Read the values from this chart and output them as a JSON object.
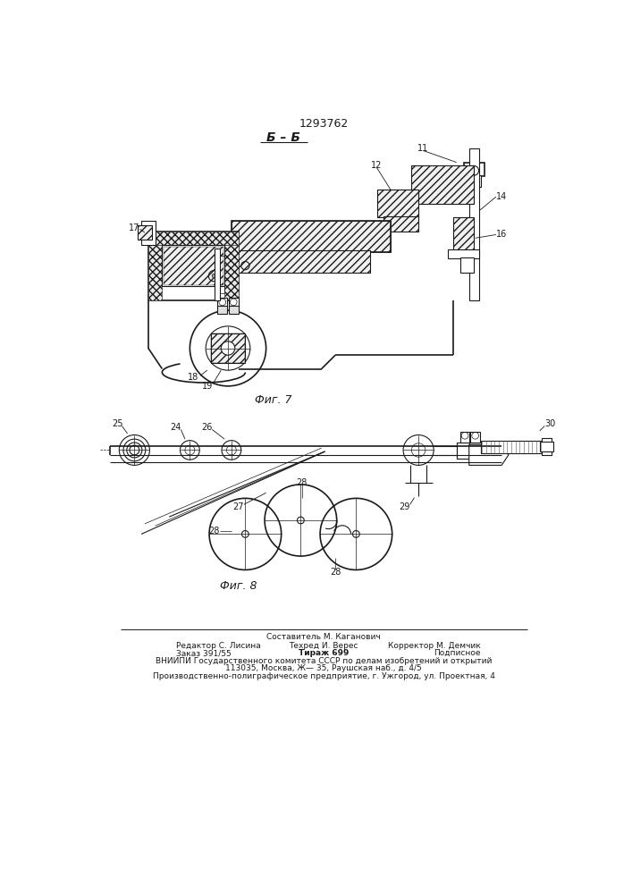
{
  "patent_number": "1293762",
  "fig7_label": "Фиг. 7",
  "fig8_label": "Фиг. 8",
  "section_label": "Б – Б",
  "footer_line0_center": "Составитель М. Каганович",
  "footer_line1_left": "Редактор С. Лисина",
  "footer_line1_center": "Техред И. Верес",
  "footer_line1_right": "Корректор М. Демчик",
  "footer_line2_left": "Заказ 391/55",
  "footer_line2_center": "Тираж 699",
  "footer_line2_right": "Подписное",
  "footer_line3": "ВНИИПИ Государственного комитета СССР по делам изобретений и открытий",
  "footer_line4": "113035, Москва, Ж— 35, Раушская наб., д. 4/5",
  "footer_line5": "Производственно-полиграфическое предприятие, г. Ужгород, ул. Проектная, 4",
  "bg_color": "#ffffff",
  "line_color": "#1a1a1a"
}
